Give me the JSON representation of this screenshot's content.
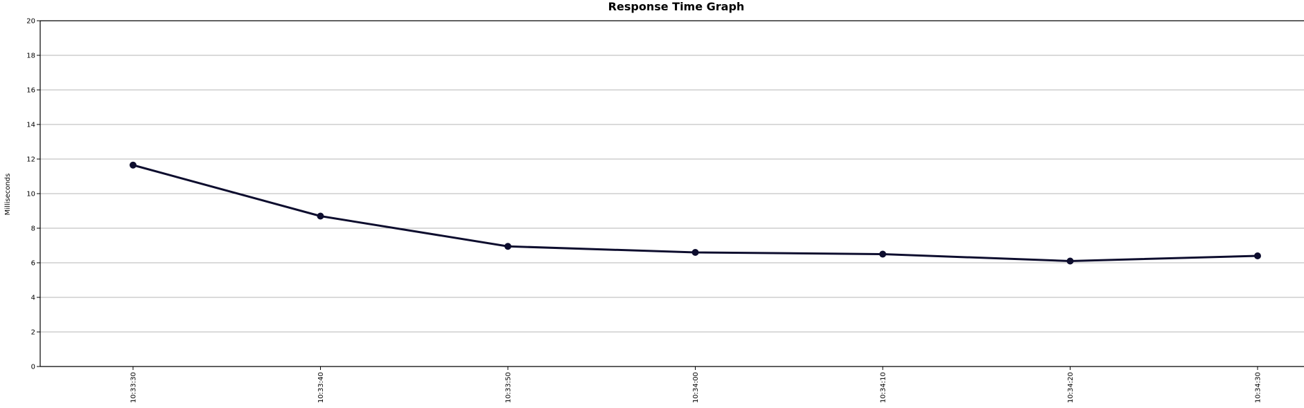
{
  "chart_data": {
    "type": "line",
    "title": "Response Time Graph",
    "ylabel": "Milliseconds",
    "xlabel": "",
    "ylim": [
      0,
      20
    ],
    "yticks": [
      0,
      2,
      4,
      6,
      8,
      10,
      12,
      14,
      16,
      18,
      20
    ],
    "categories": [
      "10:33:30",
      "10:33:40",
      "10:33:50",
      "10:34:00",
      "10:34:10",
      "10:34:20",
      "10:34:30"
    ],
    "series": [
      {
        "values": [
          11.65,
          8.7,
          6.95,
          6.6,
          6.5,
          6.1,
          6.4
        ],
        "color": "#0d0d2e"
      }
    ],
    "grid": true,
    "legend": "none"
  }
}
